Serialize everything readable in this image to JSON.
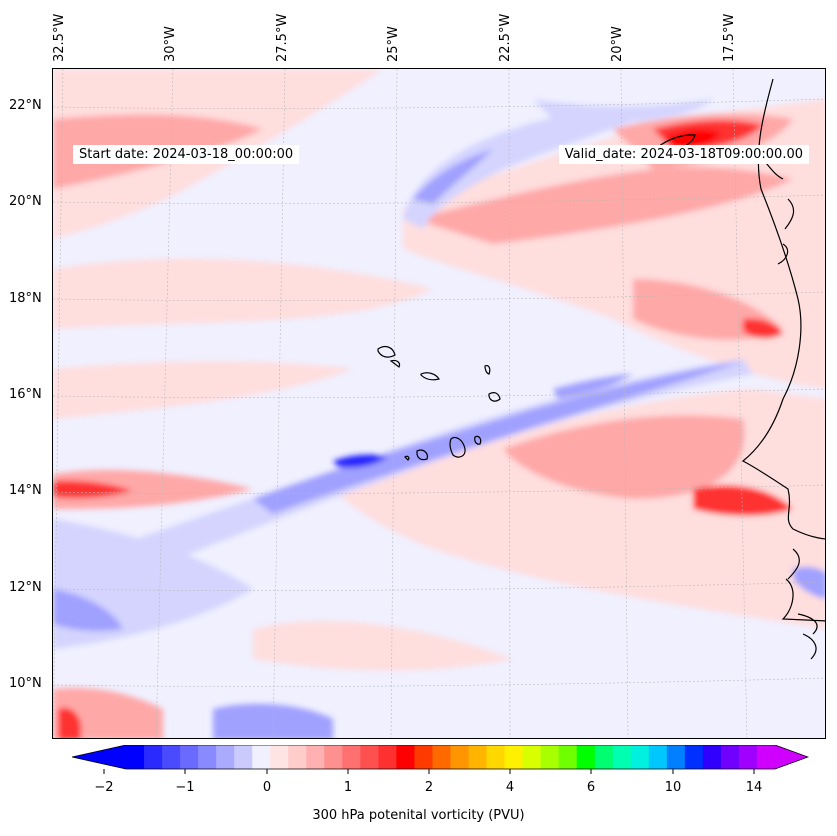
{
  "map": {
    "start_date": "Start date: 2024-03-18_00:00:00",
    "valid_date": "Valid_date: 2024-03-18T09:00:00.00",
    "longitude_labels": [
      "32.5°W",
      "30°W",
      "27.5°W",
      "25°W",
      "22.5°W",
      "20°W",
      "17.5°W"
    ],
    "latitude_labels": [
      "22°N",
      "20°N",
      "18°N",
      "16°N",
      "14°N",
      "12°N",
      "10°N"
    ],
    "extent": {
      "lon_min": -33.2,
      "lon_max": -16.1,
      "lat_min": 8.9,
      "lat_max": 22.8
    },
    "colors": {
      "ocean_background": "#f0f0ff",
      "coastline": "#000000",
      "negative_light": "#d4d4ff",
      "negative_mid": "#a0a0ff",
      "negative_strong": "#2020ff",
      "positive_light": "#ffdede",
      "positive_mid": "#ffa8a8",
      "positive_strong": "#ff3030",
      "positive_max": "#ff0000"
    }
  },
  "colorbar": {
    "title": "300 hPa potenital vorticity (PVU)",
    "tick_labels": [
      "−2",
      "−1",
      "0",
      "1",
      "2",
      "4",
      "6",
      "10",
      "14"
    ],
    "colors": [
      "#0000ff",
      "#2a2aff",
      "#4a4aff",
      "#6a6aff",
      "#8a8aff",
      "#aaaaff",
      "#cacaff",
      "#f0f0ff",
      "#ffe4e4",
      "#ffcccc",
      "#ffb0b0",
      "#ff9090",
      "#ff7070",
      "#ff5050",
      "#ff3030",
      "#ff0000",
      "#ff3a00",
      "#ff6a00",
      "#ff9500",
      "#ffb400",
      "#ffd800",
      "#fff000",
      "#d8ff00",
      "#a8ff00",
      "#70ff00",
      "#00ff00",
      "#00ff70",
      "#00ffb0",
      "#00f0e0",
      "#00c8ff",
      "#0080ff",
      "#0030ff",
      "#3000ff",
      "#7000ff",
      "#a000ff",
      "#d000ff"
    ],
    "extend_low_color": "#0000ff",
    "extend_high_color": "#d000ff"
  }
}
